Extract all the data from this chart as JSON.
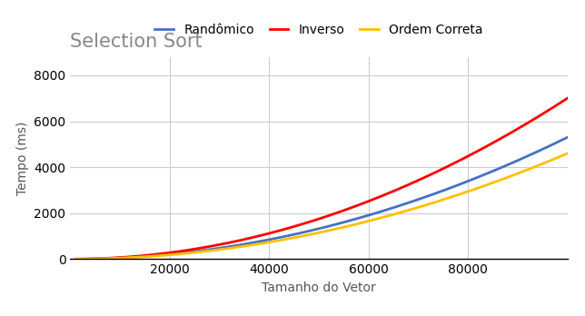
{
  "title": "Selection Sort",
  "xlabel": "Tamanho do Vetor",
  "ylabel": "Tempo (ms)",
  "xlim": [
    0,
    100000
  ],
  "ylim": [
    0,
    8800
  ],
  "xticks": [
    20000,
    40000,
    60000,
    80000
  ],
  "yticks": [
    0,
    2000,
    4000,
    6000,
    8000
  ],
  "series": [
    {
      "label": "Randômico",
      "color": "#4472C4",
      "coeff": 0.53
    },
    {
      "label": "Inverso",
      "color": "#FF0000",
      "coeff": 0.7
    },
    {
      "label": "Ordem Correta",
      "color": "#FFC000",
      "coeff": 0.46
    }
  ],
  "title_color": "#888888",
  "title_fontsize": 15,
  "label_fontsize": 10,
  "tick_fontsize": 10,
  "legend_fontsize": 10,
  "line_width": 2.0,
  "background_color": "#ffffff",
  "grid_color": "#cccccc",
  "n_points": 500,
  "x_start": 1000,
  "x_end": 100000
}
